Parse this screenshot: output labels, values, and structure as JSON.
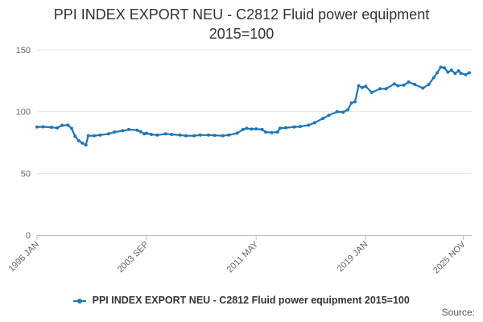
{
  "chart_data": {
    "type": "line",
    "title": "PPI INDEX EXPORT NEU - C2812 Fluid power equipment",
    "subtitle": "2015=100",
    "xlabel": "",
    "ylabel": "",
    "ylim": [
      0,
      150
    ],
    "yticks": [
      0,
      50,
      100,
      150
    ],
    "x_tick_labels": [
      "1996 JAN",
      "2003 SEP",
      "2011 MAY",
      "2019 JAN",
      "2025 NOV"
    ],
    "grid": true,
    "legend_position": "bottom",
    "series": [
      {
        "name": "PPI INDEX EXPORT NEU - C2812 Fluid power equipment 2015=100",
        "color": "#1f77b4",
        "points": [
          [
            "1996-01",
            87.5
          ],
          [
            "1996-06",
            87.7
          ],
          [
            "1997-01",
            87.3
          ],
          [
            "1997-06",
            86.8
          ],
          [
            "1997-10",
            88.9
          ],
          [
            "1998-03",
            89.0
          ],
          [
            "1998-06",
            86.5
          ],
          [
            "1998-09",
            80.0
          ],
          [
            "1998-12",
            76.5
          ],
          [
            "1999-03",
            74.5
          ],
          [
            "1999-06",
            73.0
          ],
          [
            "1999-08",
            80.5
          ],
          [
            "2000-01",
            80.5
          ],
          [
            "2000-06",
            81.0
          ],
          [
            "2001-01",
            82.0
          ],
          [
            "2001-06",
            83.5
          ],
          [
            "2002-01",
            84.5
          ],
          [
            "2002-06",
            85.5
          ],
          [
            "2003-01",
            85.0
          ],
          [
            "2003-04",
            83.8
          ],
          [
            "2003-07",
            82.0
          ],
          [
            "2003-09",
            82.5
          ],
          [
            "2004-01",
            81.5
          ],
          [
            "2004-06",
            81.0
          ],
          [
            "2005-01",
            82.0
          ],
          [
            "2005-06",
            81.5
          ],
          [
            "2006-01",
            81.0
          ],
          [
            "2006-06",
            80.5
          ],
          [
            "2007-01",
            80.5
          ],
          [
            "2007-06",
            81.0
          ],
          [
            "2008-01",
            81.0
          ],
          [
            "2008-06",
            80.8
          ],
          [
            "2009-01",
            80.5
          ],
          [
            "2009-06",
            81.0
          ],
          [
            "2010-01",
            82.5
          ],
          [
            "2010-06",
            85.5
          ],
          [
            "2010-09",
            86.5
          ],
          [
            "2011-01",
            85.8
          ],
          [
            "2011-05",
            86.0
          ],
          [
            "2011-10",
            85.5
          ],
          [
            "2012-01",
            83.5
          ],
          [
            "2012-06",
            83.0
          ],
          [
            "2012-11",
            83.5
          ],
          [
            "2013-01",
            86.5
          ],
          [
            "2013-06",
            87.0
          ],
          [
            "2014-01",
            87.5
          ],
          [
            "2014-06",
            88.0
          ],
          [
            "2015-01",
            89.0
          ],
          [
            "2015-06",
            91.0
          ],
          [
            "2016-01",
            94.5
          ],
          [
            "2016-06",
            97.0
          ],
          [
            "2017-01",
            100.0
          ],
          [
            "2017-06",
            99.5
          ],
          [
            "2017-10",
            101.5
          ],
          [
            "2018-01",
            107.0
          ],
          [
            "2018-04",
            108.0
          ],
          [
            "2018-07",
            121.0
          ],
          [
            "2018-10",
            119.5
          ],
          [
            "2019-01",
            120.5
          ],
          [
            "2019-06",
            115.5
          ],
          [
            "2020-01",
            118.5
          ],
          [
            "2020-06",
            118.5
          ],
          [
            "2021-01",
            122.5
          ],
          [
            "2021-04",
            121.0
          ],
          [
            "2021-09",
            121.5
          ],
          [
            "2022-01",
            124.0
          ],
          [
            "2022-06",
            122.0
          ],
          [
            "2023-01",
            119.0
          ],
          [
            "2023-06",
            122.0
          ],
          [
            "2023-10",
            127.5
          ],
          [
            "2024-01",
            131.5
          ],
          [
            "2024-04",
            136.0
          ],
          [
            "2024-07",
            135.5
          ],
          [
            "2024-10",
            132.0
          ],
          [
            "2025-01",
            133.5
          ],
          [
            "2025-04",
            131.0
          ],
          [
            "2025-07",
            133.0
          ],
          [
            "2025-09",
            131.0
          ],
          [
            "2026-01",
            130.0
          ],
          [
            "2026-04",
            131.5
          ]
        ]
      }
    ]
  },
  "legend": {
    "label": "PPI INDEX EXPORT NEU - C2812 Fluid power equipment 2015=100",
    "color": "#1f77b4"
  },
  "source": "Source:"
}
